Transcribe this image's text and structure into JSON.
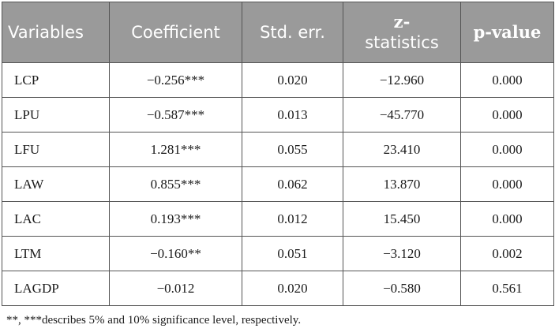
{
  "table": {
    "headers": {
      "variables": "Variables",
      "coefficient": "Coefficient",
      "std_err": "Std. err.",
      "z_line1": "z-",
      "z_line2": "statistics",
      "p_value": "p-value"
    },
    "rows": [
      {
        "variable": "LCP",
        "coefficient": "−0.256***",
        "std_err": "0.020",
        "z": "−12.960",
        "p": "0.000"
      },
      {
        "variable": "LPU",
        "coefficient": "−0.587***",
        "std_err": "0.013",
        "z": "−45.770",
        "p": "0.000"
      },
      {
        "variable": "LFU",
        "coefficient": "1.281***",
        "std_err": "0.055",
        "z": "23.410",
        "p": "0.000"
      },
      {
        "variable": "LAW",
        "coefficient": "0.855***",
        "std_err": "0.062",
        "z": "13.870",
        "p": "0.000"
      },
      {
        "variable": "LAC",
        "coefficient": "0.193***",
        "std_err": "0.012",
        "z": "15.450",
        "p": "0.000"
      },
      {
        "variable": "LTM",
        "coefficient": "−0.160**",
        "std_err": "0.051",
        "z": "−3.120",
        "p": "0.002"
      },
      {
        "variable": "LAGDP",
        "coefficient": "−0.012",
        "std_err": "0.020",
        "z": "−0.580",
        "p": "0.561"
      }
    ]
  },
  "footnote": "**, ***describes 5% and 10% significance level, respectively.",
  "colors": {
    "header_background": "#9a9a9a",
    "header_text": "#ffffff",
    "border": "#555555",
    "body_text": "#1a1a1a"
  }
}
